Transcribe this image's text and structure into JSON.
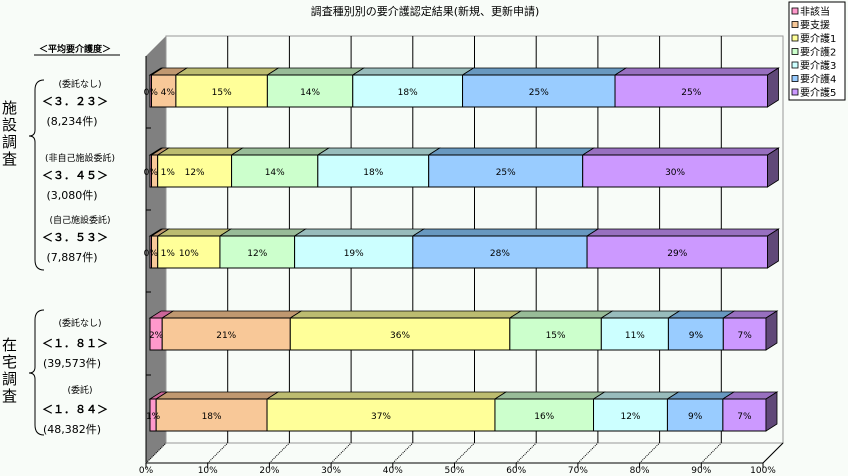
{
  "chart_data": {
    "type": "bar",
    "orientation": "horizontal",
    "stacked": "percent",
    "title": "調査種別別の要介護認定結果(新規、更新申請)",
    "xlim": [
      0,
      100
    ],
    "xticks": [
      "0%",
      "10%",
      "20%",
      "30%",
      "40%",
      "50%",
      "60%",
      "70%",
      "80%",
      "90%",
      "100%"
    ],
    "grid": true,
    "legend_position": "top-right",
    "series": [
      {
        "name": "非該当",
        "color": "#ff99cc",
        "top": "#cc6699"
      },
      {
        "name": "要支援",
        "color": "#f8c898",
        "top": "#c09870"
      },
      {
        "name": "要介護1",
        "color": "#ffff99",
        "top": "#bcbc70"
      },
      {
        "name": "要介護2",
        "color": "#ccffcc",
        "top": "#98bc98"
      },
      {
        "name": "要介護3",
        "color": "#ccffff",
        "top": "#98bcbc"
      },
      {
        "name": "要介護4",
        "color": "#99ccff",
        "top": "#6898c0"
      },
      {
        "name": "要介護5",
        "color": "#cc99ff",
        "top": "#9870c0"
      }
    ],
    "rows": [
      {
        "values": [
          0,
          4,
          15,
          14,
          18,
          25,
          25
        ],
        "labels": [
          "0%",
          "4%",
          "15%",
          "14%",
          "18%",
          "25%",
          "25%"
        ]
      },
      {
        "values": [
          0,
          1,
          12,
          14,
          18,
          25,
          30
        ],
        "labels": [
          "0%",
          "1%",
          "12%",
          "14%",
          "18%",
          "25%",
          "30%"
        ]
      },
      {
        "values": [
          0,
          1,
          10,
          12,
          19,
          28,
          29
        ],
        "labels": [
          "0%",
          "1%",
          "10%",
          "12%",
          "19%",
          "28%",
          "29%"
        ]
      },
      {
        "values": [
          2,
          21,
          36,
          15,
          11,
          9,
          7
        ],
        "labels": [
          "2%",
          "21%",
          "36%",
          "15%",
          "11%",
          "9%",
          "7%"
        ]
      },
      {
        "values": [
          1,
          18,
          37,
          16,
          12,
          9,
          7
        ],
        "labels": [
          "1%",
          "18%",
          "37%",
          "16%",
          "12%",
          "9%",
          "7%"
        ]
      }
    ]
  },
  "left_panel": {
    "heading": "＜平均要介護度＞",
    "groups": [
      {
        "label": "施設調査",
        "rows": [
          {
            "sub": "(委託なし)",
            "avg": "＜３．２３＞",
            "count": "(8,234件)"
          },
          {
            "sub": "(非自己施設委託)",
            "avg": "＜３．４５＞",
            "count": "(3,080件)"
          },
          {
            "sub": "(自己施設委託)",
            "avg": "＜３．５３＞",
            "count": "(7,887件)"
          }
        ]
      },
      {
        "label": "在宅調査",
        "rows": [
          {
            "sub": "(委託なし)",
            "avg": "＜１．８１＞",
            "count": "(39,573件)"
          },
          {
            "sub": "(委託)",
            "avg": "＜１．８４＞",
            "count": "(48,382件)"
          }
        ]
      }
    ]
  }
}
